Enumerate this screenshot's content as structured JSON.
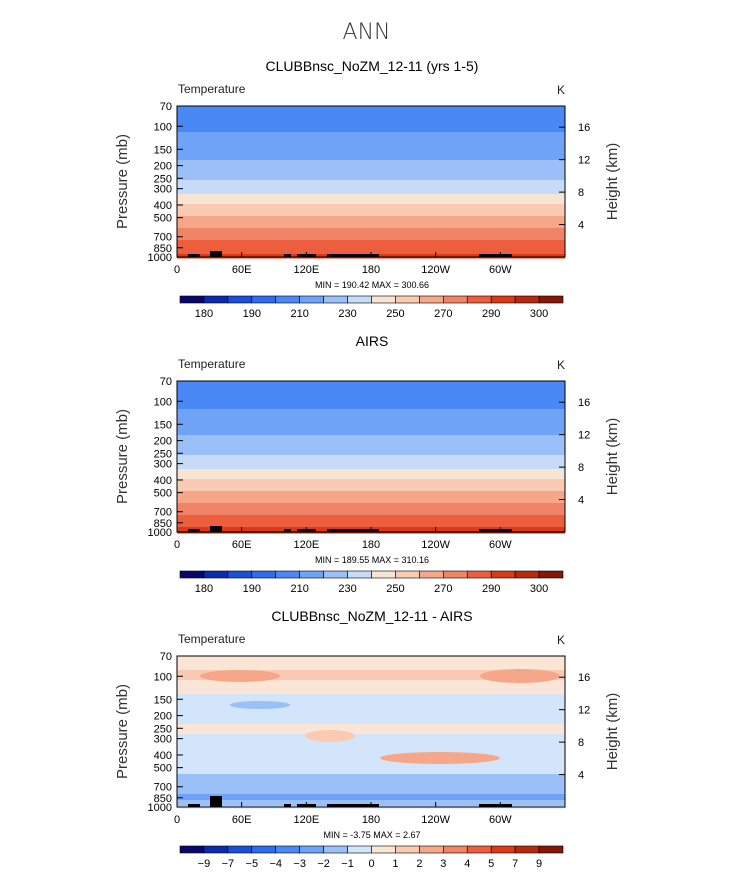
{
  "page_title": "ANN",
  "colors": {
    "temp_scale": [
      "#08086c",
      "#0a2bb0",
      "#1a4fd8",
      "#2e6cf0",
      "#4a88f5",
      "#6fa3f7",
      "#9bc0f7",
      "#c5dbf7",
      "#f7e4d2",
      "#fbcab2",
      "#f6a78a",
      "#f18367",
      "#ec5e3e",
      "#db3a17",
      "#b62a0b",
      "#861607"
    ],
    "diff_scale": [
      "#08086c",
      "#0a2bb0",
      "#1a4fd8",
      "#2e6cf0",
      "#4a88f5",
      "#6fa3f7",
      "#9bc0f7",
      "#d3e5fa",
      "#fbe5d6",
      "#fbcab2",
      "#f6a78a",
      "#f18367",
      "#ec5e3e",
      "#db3a17",
      "#b62a0b",
      "#861607"
    ]
  },
  "chart_data": [
    {
      "type": "heatmap",
      "title": "CLUBBnsc_NoZM_12-11 (yrs 1-5)",
      "field_label": "Temperature",
      "units": "K",
      "ylabel": "Pressure (mb)",
      "y2label": "Height (km)",
      "pressure_ticks": [
        "70",
        "100",
        "150",
        "200",
        "250",
        "300",
        "400",
        "500",
        "700",
        "850",
        "1000"
      ],
      "height_ticks": [
        "4",
        "8",
        "12",
        "16"
      ],
      "lon_ticks": [
        "0",
        "60E",
        "120E",
        "180",
        "120W",
        "60W"
      ],
      "stats": "MIN = 190.42   MAX = 300.66",
      "colorbar_labels": [
        "180",
        "190",
        "210",
        "230",
        "250",
        "270",
        "290",
        "300"
      ],
      "profile": {
        "pressure": [
          70,
          100,
          150,
          200,
          250,
          300,
          400,
          500,
          700,
          850,
          1000
        ],
        "value": [
          205,
          208,
          216,
          222,
          229,
          236,
          250,
          262,
          277,
          286,
          293
        ]
      }
    },
    {
      "type": "heatmap",
      "title": "AIRS",
      "field_label": "Temperature",
      "units": "K",
      "ylabel": "Pressure (mb)",
      "y2label": "Height (km)",
      "pressure_ticks": [
        "70",
        "100",
        "150",
        "200",
        "250",
        "300",
        "400",
        "500",
        "700",
        "850",
        "1000"
      ],
      "height_ticks": [
        "4",
        "8",
        "12",
        "16"
      ],
      "lon_ticks": [
        "0",
        "60E",
        "120E",
        "180",
        "120W",
        "60W"
      ],
      "stats": "MIN = 189.55   MAX = 310.16",
      "colorbar_labels": [
        "180",
        "190",
        "210",
        "230",
        "250",
        "270",
        "290",
        "300"
      ],
      "profile": {
        "pressure": [
          70,
          100,
          150,
          200,
          250,
          300,
          400,
          500,
          700,
          850,
          1000
        ],
        "value": [
          205,
          207,
          215,
          222,
          229,
          236,
          250,
          262,
          277,
          287,
          295
        ]
      }
    },
    {
      "type": "heatmap",
      "title": "CLUBBnsc_NoZM_12-11 - AIRS",
      "field_label": "Temperature",
      "units": "K",
      "ylabel": "Pressure (mb)",
      "y2label": "Height (km)",
      "pressure_ticks": [
        "70",
        "100",
        "150",
        "200",
        "250",
        "300",
        "400",
        "500",
        "700",
        "850",
        "1000"
      ],
      "height_ticks": [
        "4",
        "8",
        "12",
        "16"
      ],
      "lon_ticks": [
        "0",
        "60E",
        "120E",
        "180",
        "120W",
        "60W"
      ],
      "stats": "MIN =   -3.75   MAX =    2.67",
      "colorbar_labels": [
        "-9",
        "-7",
        "-5",
        "-4",
        "-3",
        "-2",
        "-1",
        "0",
        "1",
        "2",
        "3",
        "4",
        "5",
        "7",
        "9"
      ],
      "profile": {
        "pressure": [
          70,
          100,
          150,
          200,
          250,
          300,
          400,
          500,
          700,
          850,
          1000
        ],
        "value": [
          0.5,
          1.2,
          -0.3,
          -0.6,
          0.4,
          -0.3,
          -0.6,
          -0.8,
          -1.5,
          -2.2,
          -1.0
        ]
      }
    }
  ]
}
